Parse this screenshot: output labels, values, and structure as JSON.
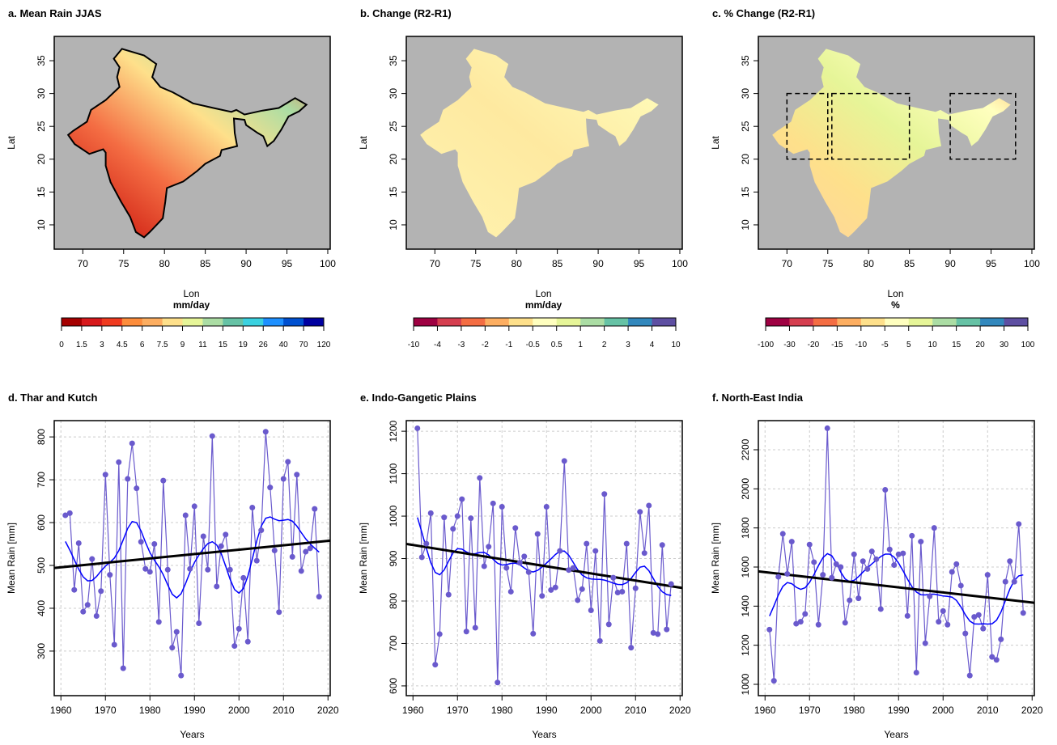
{
  "chart_data": [
    {
      "type": "map",
      "title": "a. Mean Rain JJAS",
      "xlabel": "Lon",
      "ylabel": "Lat",
      "xlim": [
        66.5,
        100.3
      ],
      "xticks": [
        70,
        75,
        80,
        85,
        90,
        95,
        100
      ],
      "ylim": [
        6.3,
        38.7
      ],
      "yticks": [
        10,
        15,
        20,
        25,
        30,
        35
      ],
      "colorbar": {
        "title": "mm/day",
        "labels": [
          "0",
          "1.5",
          "3",
          "4.5",
          "6",
          "7.5",
          "9",
          "11",
          "15",
          "19",
          "26",
          "40",
          "70",
          "120"
        ],
        "colors": [
          "#a50000",
          "#d7191c",
          "#f03b20",
          "#fd8d3c",
          "#fdae61",
          "#fee08b",
          "#e6f598",
          "#abdda4",
          "#66c2a5",
          "#3ad1e0",
          "#1e90ff",
          "#0050d0",
          "#0000a0"
        ]
      }
    },
    {
      "type": "map",
      "title": "b. Change (R2-R1)",
      "xlabel": "Lon",
      "ylabel": "Lat",
      "xlim": [
        66.5,
        100.3
      ],
      "xticks": [
        70,
        75,
        80,
        85,
        90,
        95,
        100
      ],
      "ylim": [
        6.3,
        38.7
      ],
      "yticks": [
        10,
        15,
        20,
        25,
        30,
        35
      ],
      "colorbar": {
        "title": "mm/day",
        "labels": [
          "-10",
          "-4",
          "-3",
          "-2",
          "-1",
          "-0.5",
          "0.5",
          "1",
          "2",
          "3",
          "4",
          "10"
        ],
        "colors": [
          "#9e0142",
          "#d53e4f",
          "#f46d43",
          "#fdae61",
          "#fee08b",
          "#ffffbf",
          "#e6f598",
          "#abdda4",
          "#66c2a5",
          "#3288bd",
          "#5e4fa2"
        ]
      }
    },
    {
      "type": "map",
      "title": "c. % Change (R2-R1)",
      "xlabel": "Lon",
      "ylabel": "Lat",
      "xlim": [
        66.5,
        100.3
      ],
      "xticks": [
        70,
        75,
        80,
        85,
        90,
        95,
        100
      ],
      "ylim": [
        6.3,
        38.7
      ],
      "yticks": [
        10,
        15,
        20,
        25,
        30,
        35
      ],
      "colorbar": {
        "title": "%",
        "labels": [
          "-100",
          "-30",
          "-20",
          "-15",
          "-10",
          "-5",
          "5",
          "10",
          "15",
          "20",
          "30",
          "100"
        ],
        "colors": [
          "#9e0142",
          "#d53e4f",
          "#f46d43",
          "#fdae61",
          "#fee08b",
          "#ffffbf",
          "#e6f598",
          "#abdda4",
          "#66c2a5",
          "#3288bd",
          "#5e4fa2"
        ]
      }
    },
    {
      "type": "line",
      "title": "d. Thar and Kutch",
      "xlabel": "Years",
      "ylabel": "Mean Rain [mm]",
      "xlim": [
        1958.5,
        2020.5
      ],
      "xticks": [
        1960,
        1970,
        1980,
        1990,
        2000,
        2010,
        2020
      ],
      "ylim": [
        196,
        838
      ],
      "yticks": [
        300,
        400,
        500,
        600,
        700,
        800
      ],
      "grid": true,
      "color": "#6a5acd",
      "smooth_color": "#0000ff",
      "trend_color": "#000000",
      "x": [
        1961,
        1962,
        1963,
        1964,
        1965,
        1966,
        1967,
        1968,
        1969,
        1970,
        1971,
        1972,
        1973,
        1974,
        1975,
        1976,
        1977,
        1978,
        1979,
        1980,
        1981,
        1982,
        1983,
        1984,
        1985,
        1986,
        1987,
        1988,
        1989,
        1990,
        1991,
        1992,
        1993,
        1994,
        1995,
        1996,
        1997,
        1998,
        1999,
        2000,
        2001,
        2002,
        2003,
        2004,
        2005,
        2006,
        2007,
        2008,
        2009,
        2010,
        2011,
        2012,
        2013,
        2014,
        2015,
        2016,
        2017,
        2018
      ],
      "values": [
        617,
        622,
        443,
        552,
        392,
        408,
        515,
        382,
        440,
        712,
        478,
        315,
        741,
        260,
        702,
        785,
        680,
        555,
        492,
        485,
        550,
        368,
        698,
        490,
        308,
        345,
        243,
        617,
        492,
        638,
        365,
        568,
        490,
        802,
        451,
        545,
        572,
        490,
        312,
        352,
        471,
        322,
        635,
        511,
        582,
        812,
        682,
        535,
        391,
        702,
        742,
        520,
        712,
        487,
        532,
        540,
        632,
        427
      ]
    },
    {
      "type": "line",
      "title": "e. Indo-Gangetic Plains",
      "xlabel": "Years",
      "ylabel": "Mean Rain [mm]",
      "xlim": [
        1958.5,
        2020.5
      ],
      "xticks": [
        1960,
        1970,
        1980,
        1990,
        2000,
        2010,
        2020
      ],
      "ylim": [
        577,
        1225
      ],
      "yticks": [
        600,
        700,
        800,
        900,
        1000,
        1100,
        1200
      ],
      "grid": true,
      "color": "#6a5acd",
      "smooth_color": "#0000ff",
      "trend_color": "#000000",
      "x": [
        1961,
        1962,
        1963,
        1964,
        1965,
        1966,
        1967,
        1968,
        1969,
        1970,
        1971,
        1972,
        1973,
        1974,
        1975,
        1976,
        1977,
        1978,
        1979,
        1980,
        1981,
        1982,
        1983,
        1984,
        1985,
        1986,
        1987,
        1988,
        1989,
        1990,
        1991,
        1992,
        1993,
        1994,
        1995,
        1996,
        1997,
        1998,
        1999,
        2000,
        2001,
        2002,
        2003,
        2004,
        2005,
        2006,
        2007,
        2008,
        2009,
        2010,
        2011,
        2012,
        2013,
        2014,
        2015,
        2016,
        2017,
        2018
      ],
      "values": [
        1207,
        903,
        935,
        1007,
        650,
        722,
        997,
        815,
        970,
        1000,
        1040,
        728,
        995,
        737,
        1090,
        882,
        928,
        1030,
        608,
        1022,
        878,
        822,
        972,
        890,
        905,
        868,
        723,
        958,
        812,
        1022,
        826,
        832,
        918,
        1130,
        873,
        878,
        802,
        828,
        935,
        778,
        918,
        706,
        1052,
        745,
        855,
        820,
        822,
        935,
        690,
        830,
        1010,
        913,
        1025,
        725,
        722,
        932,
        733,
        840
      ]
    },
    {
      "type": "line",
      "title": "f. North-East India",
      "xlabel": "Years",
      "ylabel": "Mean Rain [mm]",
      "xlim": [
        1958.5,
        2020.5
      ],
      "xticks": [
        1960,
        1970,
        1980,
        1990,
        2000,
        2010,
        2020
      ],
      "ylim": [
        942,
        2349
      ],
      "yticks": [
        1000,
        1200,
        1400,
        1600,
        1800,
        2000,
        2200
      ],
      "grid": true,
      "color": "#6a5acd",
      "smooth_color": "#0000ff",
      "trend_color": "#000000",
      "x": [
        1961,
        1962,
        1963,
        1964,
        1965,
        1966,
        1967,
        1968,
        1969,
        1970,
        1971,
        1972,
        1973,
        1974,
        1975,
        1976,
        1977,
        1978,
        1979,
        1980,
        1981,
        1982,
        1983,
        1984,
        1985,
        1986,
        1987,
        1988,
        1989,
        1990,
        1991,
        1992,
        1993,
        1994,
        1995,
        1996,
        1997,
        1998,
        1999,
        2000,
        2001,
        2002,
        2003,
        2004,
        2005,
        2006,
        2007,
        2008,
        2009,
        2010,
        2011,
        2012,
        2013,
        2014,
        2015,
        2016,
        2017,
        2018
      ],
      "values": [
        1280,
        1018,
        1550,
        1770,
        1565,
        1730,
        1310,
        1320,
        1360,
        1715,
        1625,
        1305,
        1560,
        2310,
        1545,
        1615,
        1600,
        1315,
        1430,
        1665,
        1440,
        1630,
        1590,
        1680,
        1640,
        1385,
        1995,
        1690,
        1610,
        1665,
        1670,
        1350,
        1760,
        1060,
        1730,
        1210,
        1450,
        1800,
        1320,
        1375,
        1305,
        1575,
        1615,
        1505,
        1260,
        1045,
        1345,
        1355,
        1285,
        1560,
        1140,
        1125,
        1230,
        1525,
        1630,
        1525,
        1820,
        1365
      ]
    }
  ]
}
